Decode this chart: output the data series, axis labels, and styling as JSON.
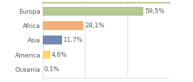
{
  "categories": [
    "Europa",
    "Africa",
    "Asia",
    "America",
    "Oceania"
  ],
  "values": [
    59.5,
    24.1,
    11.7,
    4.6,
    0.1
  ],
  "labels": [
    "59,5%",
    "24,1%",
    "11,7%",
    "4,6%",
    "0,1%"
  ],
  "bar_colors": [
    "#b5c98e",
    "#f2b07a",
    "#7389b5",
    "#f5d96b",
    "#f5d96b"
  ],
  "background_color": "#ffffff",
  "xlim": [
    0,
    75
  ],
  "label_fontsize": 6.5,
  "tick_fontsize": 6.5,
  "grid_ticks": [
    0,
    25,
    50,
    75
  ],
  "grid_color": "#dddddd",
  "top_border_color": "#b5c98e"
}
